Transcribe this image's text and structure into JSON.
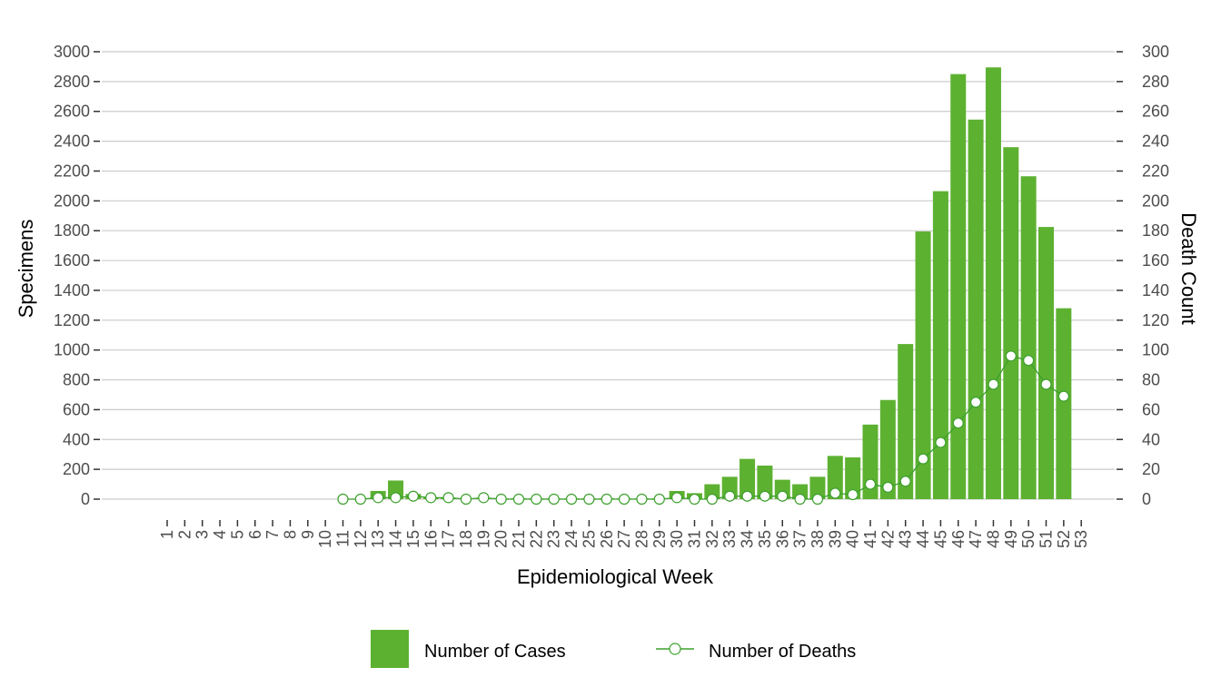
{
  "chart_data": {
    "type": "bar+line",
    "xlabel": "Epidemiological Week",
    "ylabel": "Specimens",
    "y2label": "Death Count",
    "ylim": [
      0,
      3000
    ],
    "y2lim": [
      0,
      300
    ],
    "yticks": [
      0,
      200,
      400,
      600,
      800,
      1000,
      1200,
      1400,
      1600,
      1800,
      2000,
      2200,
      2400,
      2600,
      2800,
      3000
    ],
    "y2ticks": [
      0,
      20,
      40,
      60,
      80,
      100,
      120,
      140,
      160,
      180,
      200,
      220,
      240,
      260,
      280,
      300
    ],
    "categories": [
      "1",
      "2",
      "3",
      "4",
      "5",
      "6",
      "7",
      "8",
      "9",
      "10",
      "11",
      "12",
      "13",
      "14",
      "15",
      "16",
      "17",
      "18",
      "19",
      "20",
      "21",
      "22",
      "23",
      "24",
      "25",
      "26",
      "27",
      "28",
      "29",
      "30",
      "31",
      "32",
      "33",
      "34",
      "35",
      "36",
      "37",
      "38",
      "39",
      "40",
      "41",
      "42",
      "43",
      "44",
      "45",
      "46",
      "47",
      "48",
      "49",
      "50",
      "51",
      "52",
      "53"
    ],
    "grid": "horizontal",
    "legend_position": "bottom",
    "series": [
      {
        "name": "Number of Cases",
        "type": "bar",
        "axis": "left",
        "color": "#5db131",
        "values": [
          0,
          0,
          0,
          0,
          0,
          0,
          0,
          0,
          0,
          0,
          0,
          0,
          55,
          125,
          35,
          10,
          10,
          5,
          5,
          5,
          5,
          5,
          5,
          5,
          5,
          5,
          5,
          5,
          5,
          55,
          40,
          100,
          150,
          270,
          225,
          130,
          100,
          150,
          290,
          280,
          500,
          665,
          1040,
          1795,
          2065,
          2850,
          2545,
          2895,
          2360,
          2165,
          1825,
          1280,
          0
        ]
      },
      {
        "name": "Number of Deaths",
        "type": "line",
        "axis": "right",
        "color": "#3ca02c",
        "values": [
          null,
          null,
          null,
          null,
          null,
          null,
          null,
          null,
          null,
          null,
          0,
          0,
          1,
          1,
          2,
          1,
          1,
          0,
          1,
          0,
          0,
          0,
          0,
          0,
          0,
          0,
          0,
          0,
          0,
          1,
          0,
          0,
          2,
          2,
          2,
          2,
          0,
          0,
          4,
          3,
          10,
          8,
          12,
          27,
          38,
          51,
          65,
          77,
          96,
          93,
          77,
          69,
          null
        ]
      }
    ]
  }
}
